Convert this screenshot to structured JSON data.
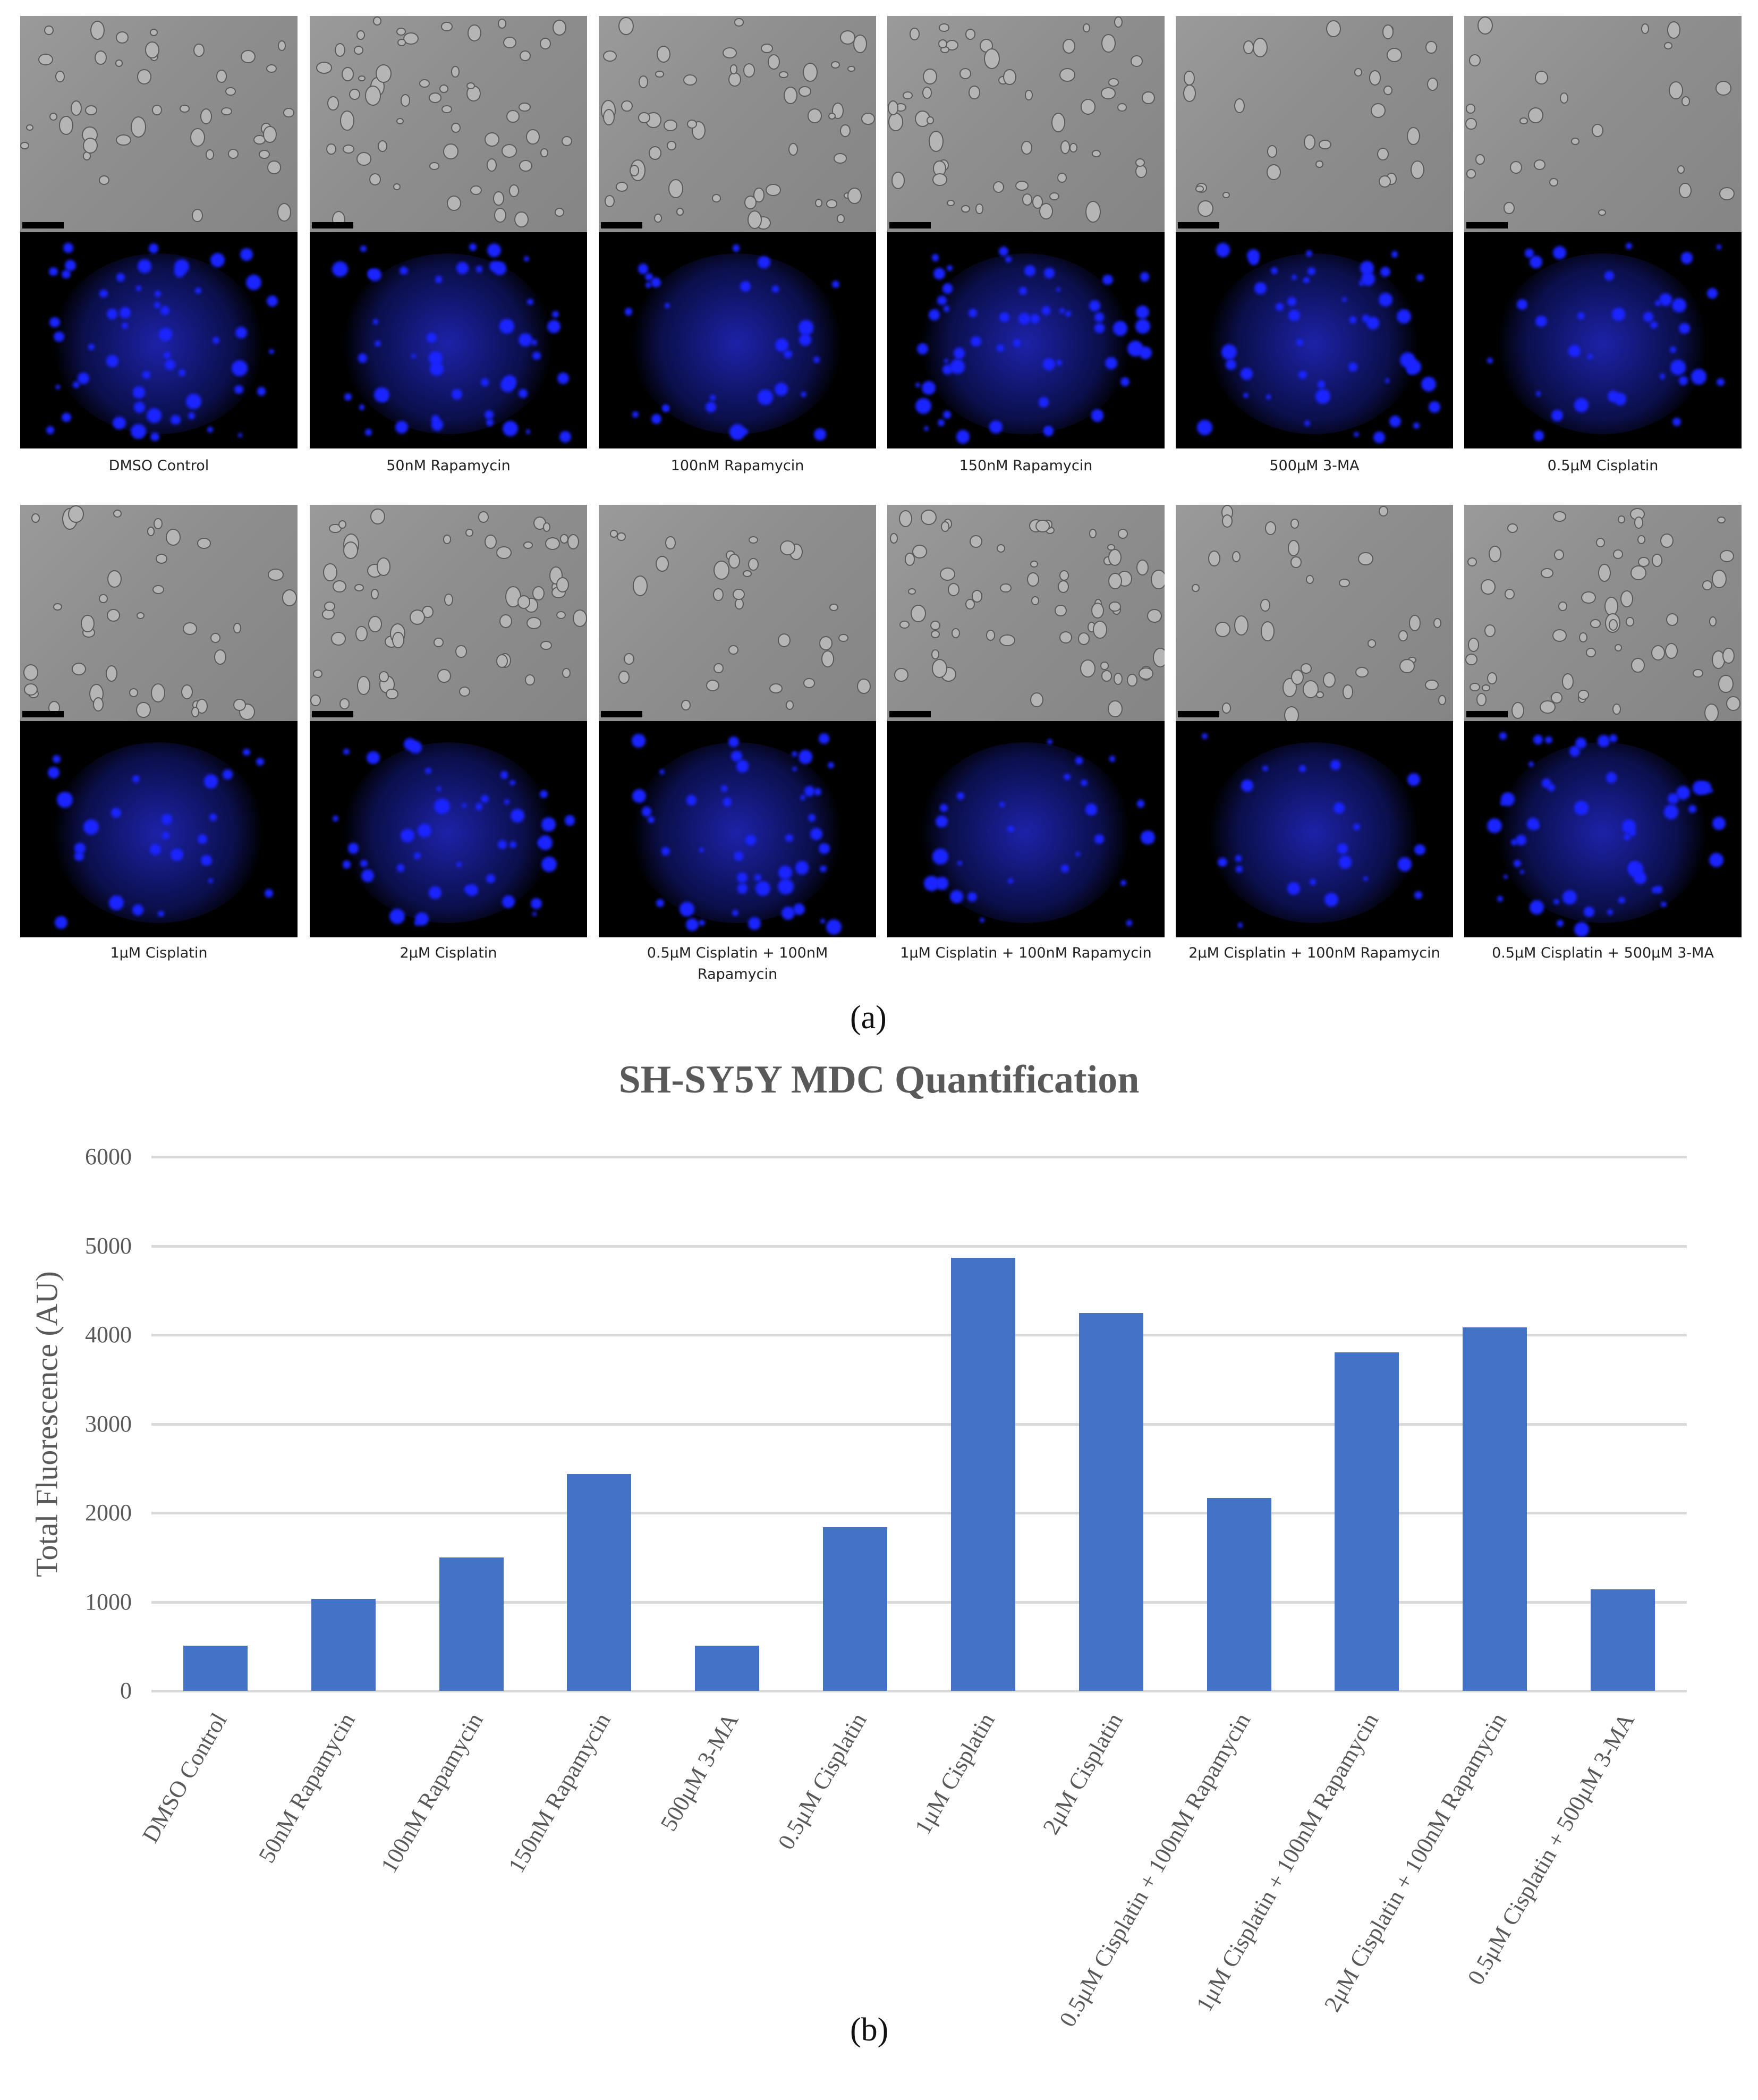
{
  "figure": {
    "panel_a_label": "(a)",
    "panel_b_label": "(b)",
    "microscopy": {
      "row1": [
        {
          "caption": "DMSO Control"
        },
        {
          "caption": "50nM Rapamycin"
        },
        {
          "caption": "100nM Rapamycin"
        },
        {
          "caption": "150nM Rapamycin"
        },
        {
          "caption": "500μM 3-MA"
        },
        {
          "caption": "0.5μM Cisplatin"
        }
      ],
      "row2": [
        {
          "caption": "1μM Cisplatin"
        },
        {
          "caption": "2μM Cisplatin"
        },
        {
          "caption": "0.5μM Cisplatin + 100nM Rapamycin"
        },
        {
          "caption": "1μM Cisplatin + 100nM Rapamycin"
        },
        {
          "caption": "2μM Cisplatin + 100nM Rapamycin"
        },
        {
          "caption": "0.5μM Cisplatin + 500μM 3-MA"
        }
      ],
      "fluorescence_color": "#1a24ff"
    }
  },
  "chart_data": {
    "type": "bar",
    "title": "SH-SY5Y MDC Quantification",
    "xlabel": "",
    "ylabel": "Total Fluorescence (AU)",
    "ylim": [
      0,
      6000
    ],
    "yticks": [
      "0",
      "1000",
      "2000",
      "3000",
      "4000",
      "5000",
      "6000"
    ],
    "grid": true,
    "legend": "none",
    "bar_color": "#4472c4",
    "categories": [
      "DMSO Control",
      "50nM Rapamycin",
      "100nM Rapamycin",
      "150nM Rapamycin",
      "500μM 3-MA",
      "0.5μM Cisplatin",
      "1μM Cisplatin",
      "2μM Cisplatin",
      "0.5μM Cisplatin + 100nM Rapamycin",
      "1μM Cisplatin + 100nM Rapamycin",
      "2μM Cisplatin + 100nM Rapamycin",
      "0.5μM Cisplatin + 500μM 3-MA"
    ],
    "values": [
      505,
      1030,
      1500,
      2435,
      505,
      1840,
      4865,
      4245,
      2170,
      3805,
      4085,
      1140
    ]
  }
}
